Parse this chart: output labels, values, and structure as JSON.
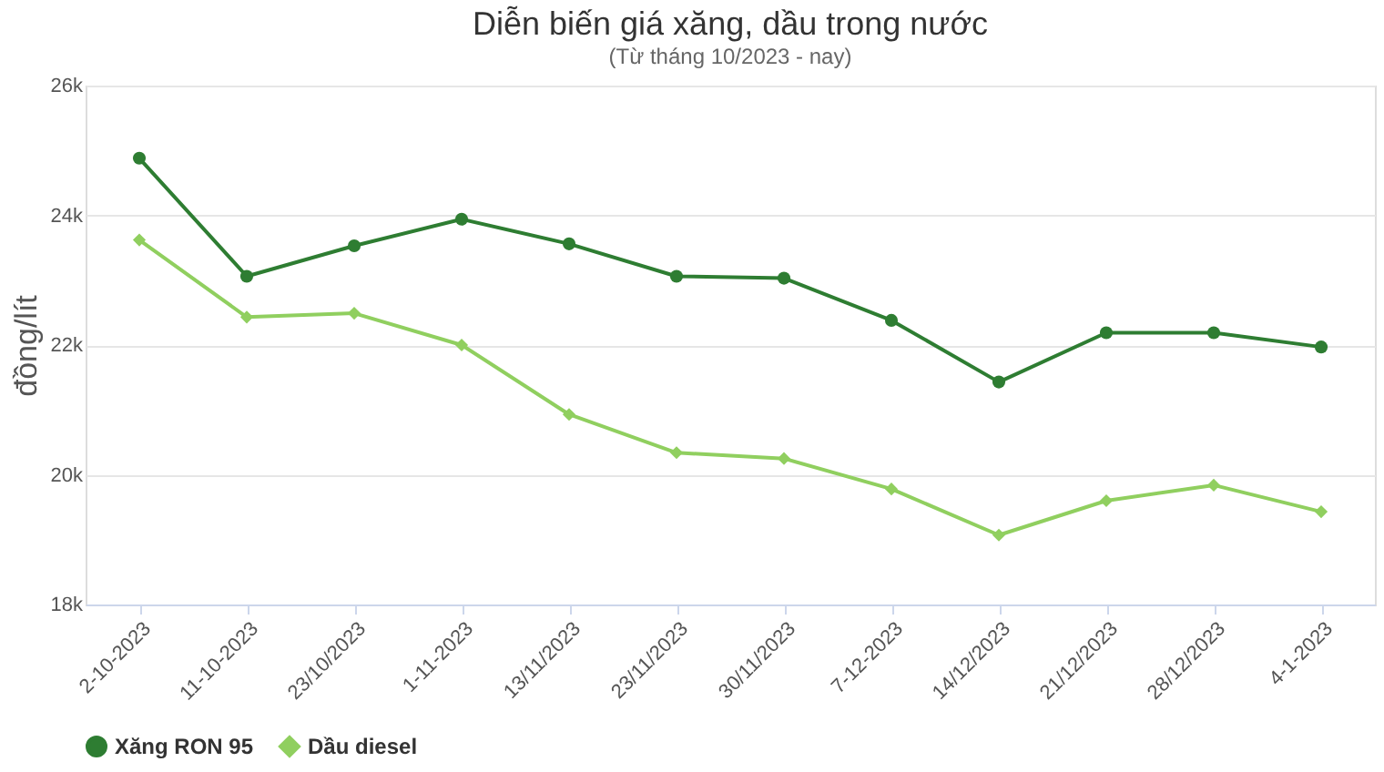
{
  "chart_data": {
    "type": "line",
    "title": "Diễn biến giá xăng, dầu trong nước",
    "subtitle": "(Từ tháng 10/2023 - nay)",
    "ylabel": "đồng/lít",
    "categories": [
      "2-10-2023",
      "11-10-2023",
      "23/10/2023",
      "1-11-2023",
      "13/11/2023",
      "23/11/2023",
      "30/11/2023",
      "7-12-2023",
      "14/12/2023",
      "21/12/2023",
      "28/12/2023",
      "4-1-2023"
    ],
    "series": [
      {
        "name": "Xăng RON 95",
        "color": "#2e7d32",
        "marker": "circle",
        "values": [
          24880,
          23060,
          23530,
          23940,
          23560,
          23060,
          23030,
          22380,
          21430,
          22190,
          22190,
          21970
        ]
      },
      {
        "name": "Dầu diesel",
        "color": "#90cf5f",
        "marker": "diamond",
        "values": [
          23620,
          22430,
          22490,
          22000,
          20930,
          20340,
          20250,
          19780,
          19070,
          19600,
          19840,
          19430
        ]
      }
    ],
    "ylim": [
      18000,
      26000
    ],
    "yticks": [
      {
        "value": 18000,
        "label": "18k"
      },
      {
        "value": 20000,
        "label": "20k"
      },
      {
        "value": 22000,
        "label": "22k"
      },
      {
        "value": 24000,
        "label": "24k"
      },
      {
        "value": 26000,
        "label": "26k"
      }
    ],
    "grid": "y",
    "legend": "bottom",
    "line_style": "solid"
  }
}
